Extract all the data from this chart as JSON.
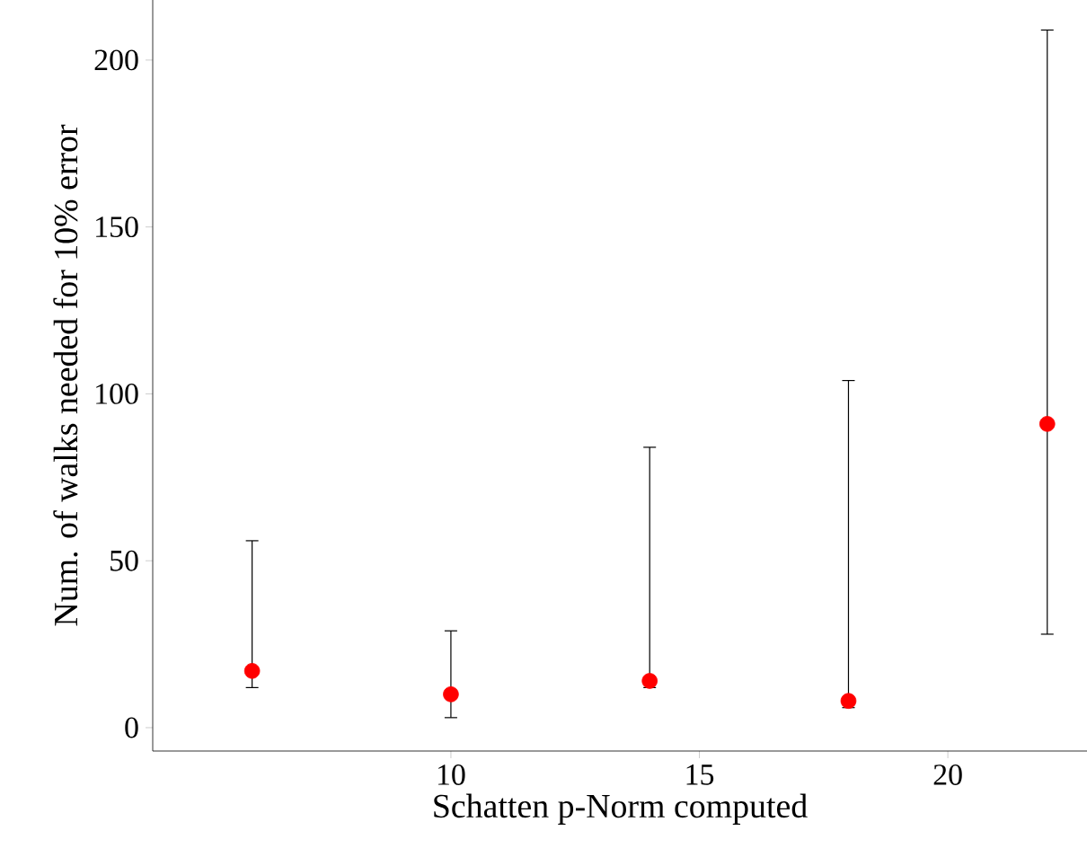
{
  "chart_data": {
    "type": "scatter",
    "xlabel": "Schatten p-Norm computed",
    "ylabel": "Num. of walks needed for 10% error",
    "x": [
      6,
      10,
      14,
      18,
      22
    ],
    "values": [
      17,
      10,
      14,
      8,
      91
    ],
    "errors": [
      [
        12,
        56
      ],
      [
        3,
        29
      ],
      [
        12,
        84
      ],
      [
        6,
        104
      ],
      [
        28,
        209
      ]
    ],
    "color": "#ff0000",
    "marker": "circle",
    "grid": false,
    "xlim": [
      4,
      22.8
    ],
    "ylim": [
      -7,
      218
    ],
    "xticks": [
      10,
      15,
      20
    ],
    "yticks": [
      0,
      50,
      100,
      150,
      200
    ]
  }
}
